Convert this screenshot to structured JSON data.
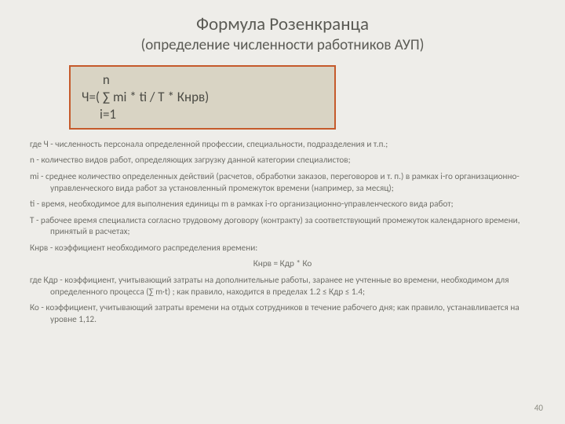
{
  "colors": {
    "page_bg": "#eeede9",
    "text_body": "#6f6f69",
    "text_title": "#5b5b55",
    "formula_bg": "#d9d4c4",
    "formula_border": "#c55a2b"
  },
  "title": "Формула Розенкранца",
  "subtitle": "(определение численности работников АУП)",
  "formula": {
    "line1": "       n",
    "line2": "Ч=( ∑ mi * ti / T * Кнрв)",
    "line3": "      i=1"
  },
  "paragraphs": {
    "p1": "где Ч - численность персонала определенной профессии, специальности, подразделения и т.п.;",
    "p2": "n - количество видов работ, определяющих загрузку данной категории специалистов;",
    "p3": "mi - среднее количество определенных действий (расчетов, обработки заказов, переговоров и т. п.) в рамках i-го организационно-управленческого вида работ за установленный промежуток времени (например, за месяц);",
    "p4": "ti - время, необходимое для выполнения единицы m в рамках i-го организационно-управленческого вида работ;",
    "p5": "T - рабочее время специалиста согласно трудовому договору (контракту) за соответствующий промежуток календарного времени, принятый в расчетах;",
    "p6": "Кнрв - коэффициент необходимого распределения времени:",
    "p7": "Кнрв = Кдр * Ко",
    "p8": "где Кдр - коэффициент, учитывающий затраты на дополнительные работы, заранее не учтенные во времени, необходимом для определенного процесса (∑ m·t) ; как правило, находится в пределах 1.2 ≤ Кдр ≤ 1.4;",
    "p9": "Ко - коэффициент, учитывающий затраты времени на отдых сотрудников в течение рабочего дня; как правило, устанавливается на уровне 1,12."
  },
  "page_number": "40"
}
